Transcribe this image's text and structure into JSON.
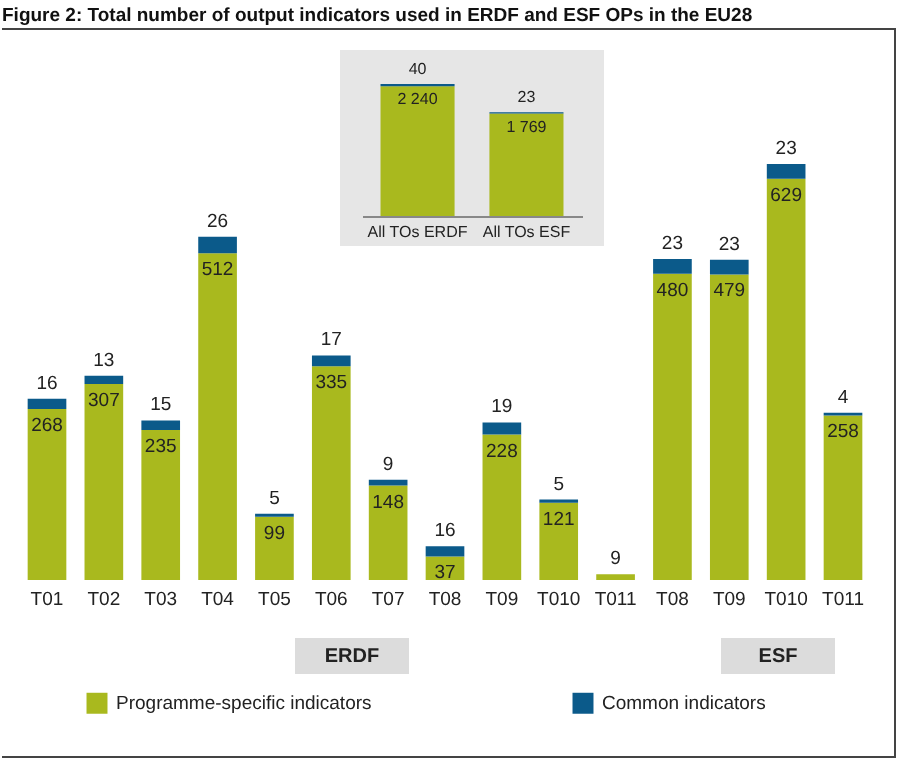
{
  "chart_data": [
    {
      "type": "bar",
      "title": "Figure 2: Total number of output indicators used in ERDF and ESF OPs in the EU28",
      "categories": [
        "T01",
        "T02",
        "T03",
        "T04",
        "T05",
        "T06",
        "T07",
        "T08",
        "T09",
        "T010",
        "T011",
        "T08",
        "T09",
        "T010",
        "T011"
      ],
      "stacked": true,
      "data_labels": true,
      "legend": "bottom",
      "series": [
        {
          "name": "Programme-specific indicators",
          "color": "#a9b91e",
          "values": [
            268,
            307,
            235,
            512,
            99,
            335,
            148,
            37,
            228,
            121,
            9,
            480,
            479,
            629,
            258
          ]
        },
        {
          "name": "Common indicators",
          "color": "#0b5a8a",
          "values": [
            16,
            13,
            15,
            26,
            5,
            17,
            9,
            16,
            19,
            5,
            null,
            23,
            23,
            23,
            4
          ]
        }
      ],
      "annotations": [
        "ERDF",
        "ESF"
      ]
    },
    {
      "type": "bar",
      "categories": [
        "All TOs ERDF",
        "All TOs ESF"
      ],
      "stacked": true,
      "series": [
        {
          "color": "#a9b91e",
          "values": [
            2240,
            1769
          ],
          "value_labels": [
            "2 240",
            "1 769"
          ]
        },
        {
          "color": "#0b5a8a",
          "values": [
            40,
            23
          ],
          "value_labels": [
            "40",
            "23"
          ]
        }
      ]
    }
  ]
}
